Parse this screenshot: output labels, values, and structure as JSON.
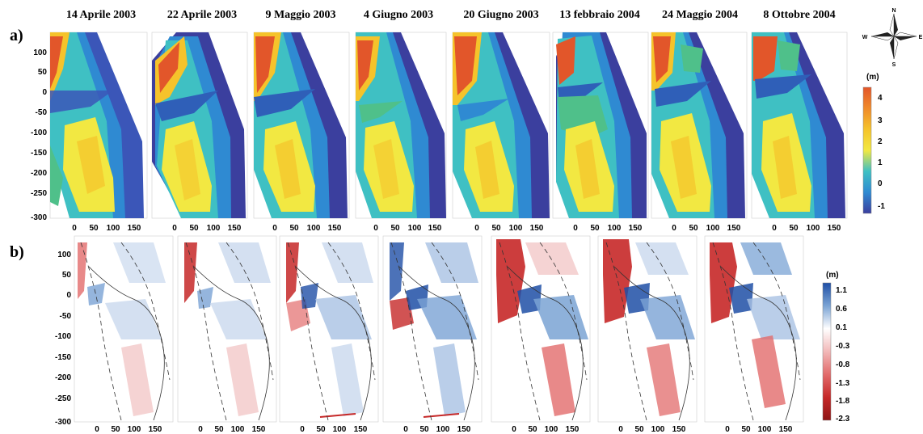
{
  "figure": {
    "panel_a_label": "a)",
    "panel_b_label": "b)",
    "dates": [
      "14 Aprile 2003",
      "22 Aprile 2003",
      "9 Maggio 2003",
      "4 Giugno 2003",
      "20 Giugno 2003",
      "13 febbraio 2004",
      "24 Maggio 2004",
      "8 Ottobre 2004"
    ],
    "y_ticks": [
      "100",
      "50",
      "0",
      "-50",
      "-100",
      "-150",
      "-200",
      "-250",
      "-300"
    ],
    "x_ticks": [
      "0",
      "50",
      "100",
      "150"
    ]
  },
  "colorbar_a": {
    "unit": "(m)",
    "ticks": [
      "4",
      "3",
      "2",
      "1",
      "0",
      "-1"
    ],
    "colors": [
      "#e2562a",
      "#f08a2a",
      "#f5c32b",
      "#f2e842",
      "#3fc0c3",
      "#2f8ad2",
      "#3b3f9e"
    ]
  },
  "colorbar_b": {
    "unit": "(m)",
    "ticks": [
      "1.1",
      "0.6",
      "0.1",
      "-0.3",
      "-0.8",
      "-1.3",
      "-1.8",
      "-2.3"
    ],
    "colors": [
      "#1f4fa6",
      "#7aa3d4",
      "#ffffff",
      "#f2b8b8",
      "#e26b6b",
      "#c62828",
      "#8e1414"
    ]
  },
  "compass": {
    "n": "N",
    "s": "S",
    "e": "E",
    "w": "W"
  }
}
